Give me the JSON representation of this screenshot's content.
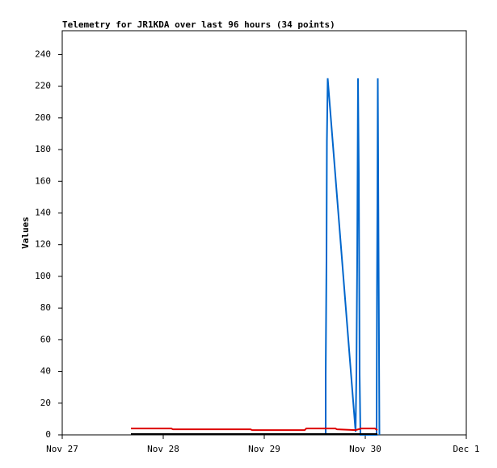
{
  "chart_data": {
    "type": "line",
    "title": "Telemetry for JR1KDA over last 96 hours (34 points)",
    "y_label": "Values",
    "xlim": [
      0,
      4
    ],
    "xticks": [
      {
        "value": 0,
        "label": "Nov 27"
      },
      {
        "value": 1,
        "label": "Nov 28"
      },
      {
        "value": 2,
        "label": "Nov 29"
      },
      {
        "value": 3,
        "label": "Nov 30"
      },
      {
        "value": 4,
        "label": "Dec 1"
      }
    ],
    "ylim": [
      0,
      255
    ],
    "yticks": [
      0,
      20,
      40,
      60,
      80,
      100,
      120,
      140,
      160,
      180,
      200,
      220,
      240
    ],
    "series": [
      {
        "color": "#0066cc",
        "x": [
          2.608,
          2.608,
          2.616,
          2.62,
          2.628,
          2.904,
          2.912,
          2.92,
          2.928,
          2.936,
          2.944,
          2.952,
          3.112,
          3.116,
          3.12,
          3.124,
          3.132,
          3.14
        ],
        "values": [
          0,
          38,
          110,
          185,
          225,
          2,
          38,
          110,
          225,
          165,
          38,
          0,
          0,
          90,
          147,
          225,
          110,
          0
        ]
      },
      {
        "color": "#dd0000",
        "x": [
          0.68,
          1.08,
          1.096,
          1.864,
          1.88,
          2.4,
          2.416,
          2.704,
          2.72,
          2.904,
          2.96,
          3.096,
          3.12
        ],
        "values": [
          4,
          4,
          3.5,
          3.5,
          3,
          3,
          4,
          4,
          3.5,
          3,
          4,
          4,
          3
        ]
      },
      {
        "color": "#000000",
        "x": [
          0.68,
          3.12
        ],
        "values": [
          0.5,
          0.5
        ]
      }
    ]
  }
}
